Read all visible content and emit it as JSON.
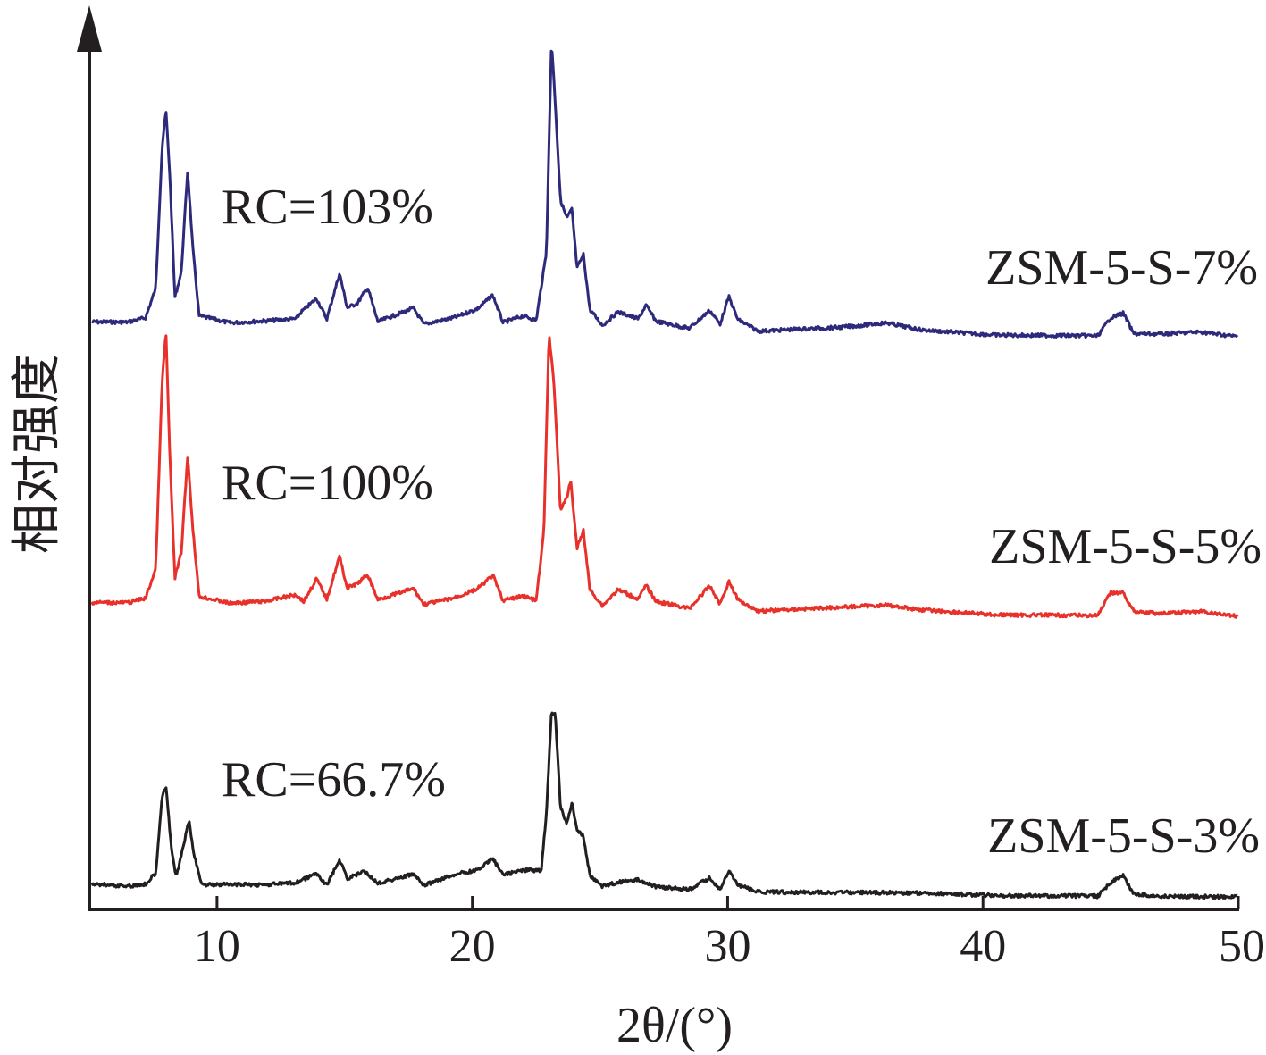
{
  "chart_data": {
    "type": "line",
    "title": "",
    "xlabel": "2θ/(°)",
    "ylabel": "相对强度",
    "xlim": [
      5,
      50
    ],
    "xticks": [
      10,
      20,
      30,
      40,
      50
    ],
    "y_tick_labels": false,
    "grid": false,
    "legend": "labels printed at the right end of each curve",
    "offset_stacked": true,
    "series": [
      {
        "name": "ZSM-5-S-7%",
        "annotation": "RC=103%",
        "color": "#2e2a7b",
        "points": [
          [
            5.1,
            3
          ],
          [
            6.5,
            3
          ],
          [
            7.2,
            5
          ],
          [
            7.6,
            18
          ],
          [
            7.85,
            80
          ],
          [
            8.0,
            96
          ],
          [
            8.15,
            68
          ],
          [
            8.35,
            14
          ],
          [
            8.6,
            25
          ],
          [
            8.85,
            70
          ],
          [
            9.05,
            36
          ],
          [
            9.3,
            6
          ],
          [
            10.5,
            3
          ],
          [
            11.9,
            4
          ],
          [
            13.1,
            5
          ],
          [
            13.3,
            8
          ],
          [
            13.9,
            14
          ],
          [
            14.3,
            5
          ],
          [
            14.8,
            25
          ],
          [
            15.1,
            10
          ],
          [
            15.5,
            12
          ],
          [
            15.9,
            19
          ],
          [
            16.3,
            4
          ],
          [
            17.7,
            10
          ],
          [
            18.1,
            3
          ],
          [
            19.3,
            6
          ],
          [
            20.2,
            10
          ],
          [
            20.8,
            16
          ],
          [
            21.2,
            4
          ],
          [
            22.0,
            7
          ],
          [
            22.5,
            5
          ],
          [
            22.9,
            35
          ],
          [
            23.1,
            128
          ],
          [
            23.25,
            100
          ],
          [
            23.45,
            58
          ],
          [
            23.7,
            50
          ],
          [
            23.9,
            54
          ],
          [
            24.1,
            28
          ],
          [
            24.35,
            34
          ],
          [
            24.6,
            10
          ],
          [
            25.1,
            3
          ],
          [
            25.7,
            9
          ],
          [
            26.5,
            6
          ],
          [
            26.8,
            12
          ],
          [
            27.2,
            5
          ],
          [
            28.5,
            2
          ],
          [
            29.3,
            10
          ],
          [
            29.7,
            4
          ],
          [
            30.05,
            16
          ],
          [
            30.4,
            6
          ],
          [
            31.2,
            1
          ],
          [
            32.8,
            2
          ],
          [
            34.5,
            3
          ],
          [
            36.2,
            5
          ],
          [
            37.6,
            2
          ],
          [
            40.5,
            0
          ],
          [
            44.5,
            0
          ],
          [
            45.0,
            8
          ],
          [
            45.5,
            10
          ],
          [
            45.9,
            1
          ],
          [
            47.0,
            1
          ],
          [
            48.5,
            2
          ],
          [
            50.0,
            0
          ]
        ]
      },
      {
        "name": "ZSM-5-S-5%",
        "annotation": "RC=100%",
        "color": "#e8312a",
        "points": [
          [
            5.1,
            3
          ],
          [
            6.5,
            3
          ],
          [
            7.2,
            5
          ],
          [
            7.6,
            18
          ],
          [
            7.85,
            100
          ],
          [
            8.0,
            122
          ],
          [
            8.15,
            68
          ],
          [
            8.35,
            14
          ],
          [
            8.6,
            25
          ],
          [
            8.85,
            68
          ],
          [
            9.05,
            36
          ],
          [
            9.3,
            6
          ],
          [
            10.5,
            3
          ],
          [
            11.9,
            4
          ],
          [
            13.1,
            7
          ],
          [
            13.4,
            4
          ],
          [
            13.9,
            14
          ],
          [
            14.3,
            5
          ],
          [
            14.8,
            24
          ],
          [
            15.1,
            10
          ],
          [
            15.5,
            12
          ],
          [
            15.9,
            16
          ],
          [
            16.3,
            5
          ],
          [
            17.7,
            10
          ],
          [
            18.1,
            3
          ],
          [
            19.3,
            6
          ],
          [
            20.2,
            10
          ],
          [
            20.8,
            16
          ],
          [
            21.2,
            5
          ],
          [
            22.0,
            7
          ],
          [
            22.5,
            5
          ],
          [
            22.8,
            35
          ],
          [
            23.0,
            122
          ],
          [
            23.2,
            100
          ],
          [
            23.45,
            45
          ],
          [
            23.7,
            50
          ],
          [
            23.85,
            58
          ],
          [
            24.1,
            28
          ],
          [
            24.35,
            36
          ],
          [
            24.6,
            10
          ],
          [
            25.1,
            3
          ],
          [
            25.7,
            10
          ],
          [
            26.5,
            6
          ],
          [
            26.8,
            12
          ],
          [
            27.2,
            5
          ],
          [
            28.5,
            2
          ],
          [
            29.3,
            12
          ],
          [
            29.7,
            4
          ],
          [
            30.05,
            14
          ],
          [
            30.4,
            6
          ],
          [
            31.2,
            1
          ],
          [
            32.8,
            2
          ],
          [
            34.5,
            3
          ],
          [
            36.2,
            4
          ],
          [
            37.6,
            2
          ],
          [
            40.5,
            0
          ],
          [
            44.5,
            0
          ],
          [
            45.0,
            10
          ],
          [
            45.5,
            10
          ],
          [
            45.9,
            2
          ],
          [
            47.0,
            1
          ],
          [
            48.5,
            2
          ],
          [
            50.0,
            0
          ]
        ]
      },
      {
        "name": "ZSM-5-S-3%",
        "annotation": "RC=66.7%",
        "color": "#231f20",
        "points": [
          [
            5.1,
            3
          ],
          [
            6.5,
            2
          ],
          [
            7.2,
            3
          ],
          [
            7.6,
            8
          ],
          [
            7.85,
            42
          ],
          [
            8.0,
            46
          ],
          [
            8.2,
            20
          ],
          [
            8.4,
            6
          ],
          [
            8.65,
            18
          ],
          [
            8.9,
            31
          ],
          [
            9.1,
            16
          ],
          [
            9.4,
            3
          ],
          [
            10.5,
            3
          ],
          [
            11.9,
            3
          ],
          [
            13.1,
            4
          ],
          [
            13.9,
            8
          ],
          [
            14.3,
            3
          ],
          [
            14.8,
            14
          ],
          [
            15.1,
            6
          ],
          [
            15.8,
            9
          ],
          [
            16.3,
            4
          ],
          [
            17.7,
            8
          ],
          [
            18.1,
            3
          ],
          [
            19.3,
            8
          ],
          [
            20.2,
            10
          ],
          [
            20.8,
            15
          ],
          [
            21.2,
            8
          ],
          [
            22.0,
            10
          ],
          [
            22.7,
            10
          ],
          [
            22.9,
            35
          ],
          [
            23.1,
            80
          ],
          [
            23.25,
            78
          ],
          [
            23.45,
            38
          ],
          [
            23.7,
            30
          ],
          [
            23.9,
            40
          ],
          [
            24.1,
            28
          ],
          [
            24.35,
            25
          ],
          [
            24.6,
            8
          ],
          [
            25.1,
            3
          ],
          [
            25.7,
            5
          ],
          [
            26.5,
            6
          ],
          [
            26.8,
            5
          ],
          [
            27.2,
            3
          ],
          [
            28.5,
            2
          ],
          [
            29.3,
            7
          ],
          [
            29.7,
            2
          ],
          [
            30.05,
            10
          ],
          [
            30.4,
            4
          ],
          [
            31.2,
            1
          ],
          [
            32.8,
            1
          ],
          [
            34.5,
            1
          ],
          [
            36.2,
            1
          ],
          [
            37.6,
            1
          ],
          [
            40.5,
            0
          ],
          [
            44.5,
            0
          ],
          [
            45.0,
            6
          ],
          [
            45.5,
            9
          ],
          [
            45.9,
            1
          ],
          [
            47.0,
            0
          ],
          [
            48.5,
            0
          ],
          [
            50.0,
            0
          ]
        ]
      }
    ]
  }
}
